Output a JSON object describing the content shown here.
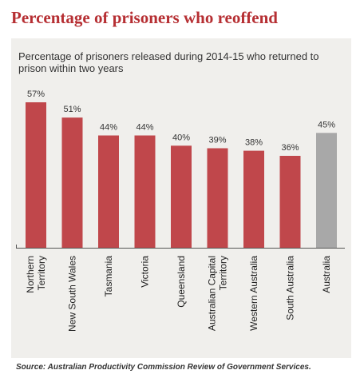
{
  "title": "Percentage of prisoners who reoffend",
  "source": "Source: Australian Productivity Commission Review of Government Services.",
  "colors": {
    "title": "#b62f33",
    "bar": "#c0474b",
    "highlight": "#a8a8a8",
    "panel": "#f0efec",
    "axis": "#555555"
  },
  "chart_data": {
    "type": "bar",
    "title": "Percentage of prisoners released during 2014-15 who returned to prison within two years",
    "xlabel": "",
    "ylabel": "",
    "ylim": [
      0,
      62
    ],
    "grid": false,
    "categories": [
      "Northern Territory",
      "New South Wales",
      "Tasmania",
      "Victoria",
      "Queensland",
      "Australian Capital Territory",
      "Western Australia",
      "South Australia",
      "Australia"
    ],
    "category_lines": [
      [
        "Northern",
        "Territory"
      ],
      [
        "New South Wales"
      ],
      [
        "Tasmania"
      ],
      [
        "Victoria"
      ],
      [
        "Queensland"
      ],
      [
        "Australian Capital",
        "Territory"
      ],
      [
        "Western Australia"
      ],
      [
        "South Australia"
      ],
      [
        "Australia"
      ]
    ],
    "values": [
      57,
      51,
      44,
      44,
      40,
      39,
      38,
      36,
      45
    ],
    "data_labels": [
      "57%",
      "51%",
      "44%",
      "44%",
      "40%",
      "39%",
      "38%",
      "36%",
      "45%"
    ],
    "highlight_category": "Australia"
  }
}
